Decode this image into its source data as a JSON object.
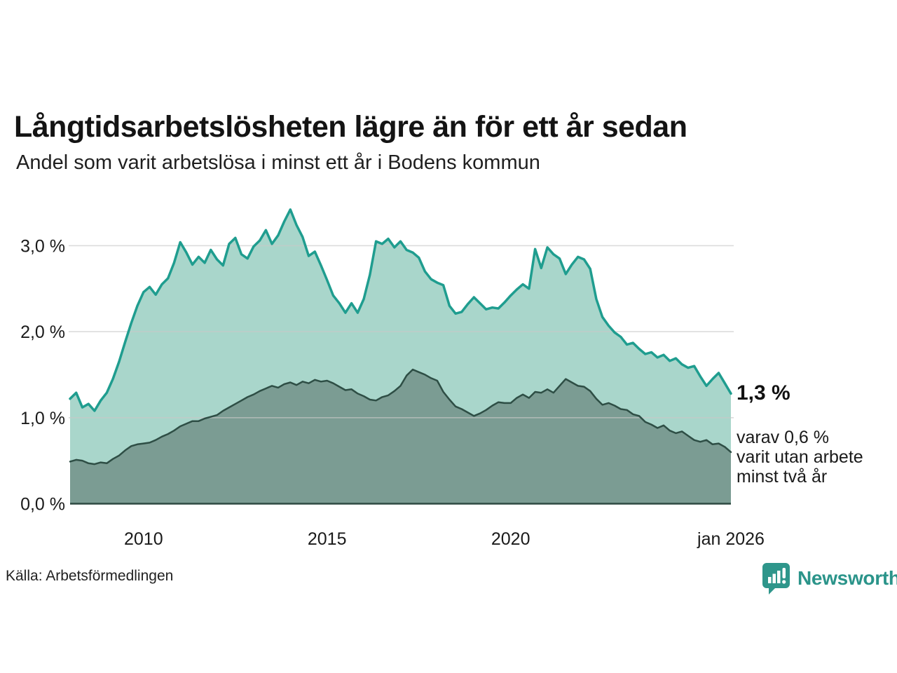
{
  "annotations": {
    "end_value_primary": "1,3 %",
    "end_note": "varav 0,6 %\nvarit utan arbete\nminst två år"
  },
  "footer": {
    "logo_text": "Newsworthy",
    "logo_icon": "newsworthy-bar-chart-bubble-icon"
  },
  "colors": {
    "accent_teal": "#1f9d8f",
    "light_area_fill": "#a9d6cb",
    "dark_area_fill": "#7b9c93",
    "dark_line": "#2e4e45",
    "gridline": "#c8c8c8",
    "axis_line": "#2e4a42",
    "logo_teal": "#2e968b",
    "text_dark": "#1a1a1a"
  },
  "chart_data": {
    "type": "area",
    "title": "Långtidsarbetslösheten lägre än för ett år sedan",
    "subtitle": "Andel som varit arbetslösa i minst ett år i Bodens kommun",
    "source": "Källa: Arbetsförmedlingen",
    "unit": "%",
    "grid": "horizontal",
    "legend_position": "none",
    "x_start": 2008.0,
    "x_step_years": 0.1666667,
    "x_end": 2026.0,
    "xlim": [
      2008.0,
      2026.0
    ],
    "ylim": [
      0,
      3.55
    ],
    "x_ticks": [
      {
        "label": "2010",
        "x": 2010
      },
      {
        "label": "2015",
        "x": 2015
      },
      {
        "label": "2020",
        "x": 2020
      },
      {
        "label": "jan 2026",
        "x": 2026
      }
    ],
    "y_ticks": [
      {
        "label": "0,0 %",
        "value": 0
      },
      {
        "label": "1,0 %",
        "value": 1
      },
      {
        "label": "2,0 %",
        "value": 2
      },
      {
        "label": "3,0 %",
        "value": 3
      }
    ],
    "series": [
      {
        "name": "Andel arbetslösa minst ett år",
        "end_value": 1.3,
        "line_color": "#1f9d8f",
        "fill_color": "#a9d6cb",
        "line_width": 3.5,
        "values": [
          1.22,
          1.29,
          1.12,
          1.16,
          1.08,
          1.2,
          1.29,
          1.45,
          1.65,
          1.88,
          2.1,
          2.3,
          2.46,
          2.52,
          2.43,
          2.55,
          2.62,
          2.8,
          3.04,
          2.92,
          2.78,
          2.87,
          2.8,
          2.95,
          2.84,
          2.77,
          3.02,
          3.09,
          2.9,
          2.85,
          2.99,
          3.06,
          3.18,
          3.02,
          3.12,
          3.28,
          3.42,
          3.24,
          3.1,
          2.88,
          2.93,
          2.77,
          2.6,
          2.42,
          2.33,
          2.22,
          2.33,
          2.22,
          2.38,
          2.66,
          3.05,
          3.02,
          3.08,
          2.98,
          3.05,
          2.95,
          2.92,
          2.86,
          2.7,
          2.61,
          2.57,
          2.54,
          2.3,
          2.21,
          2.23,
          2.32,
          2.4,
          2.33,
          2.26,
          2.28,
          2.27,
          2.34,
          2.42,
          2.49,
          2.55,
          2.5,
          2.96,
          2.74,
          2.98,
          2.9,
          2.85,
          2.67,
          2.78,
          2.87,
          2.84,
          2.73,
          2.38,
          2.17,
          2.07,
          1.99,
          1.94,
          1.85,
          1.87,
          1.8,
          1.74,
          1.76,
          1.7,
          1.73,
          1.66,
          1.69,
          1.62,
          1.58,
          1.6,
          1.48,
          1.37,
          1.45,
          1.52,
          1.4,
          1.28
        ]
      },
      {
        "name": "Andel utan arbete minst två år",
        "end_value": 0.6,
        "line_color": "#2e4e45",
        "fill_color": "#7b9c93",
        "line_width": 2.5,
        "values": [
          0.49,
          0.51,
          0.5,
          0.47,
          0.46,
          0.48,
          0.47,
          0.52,
          0.56,
          0.62,
          0.67,
          0.69,
          0.7,
          0.71,
          0.74,
          0.78,
          0.81,
          0.85,
          0.9,
          0.93,
          0.96,
          0.96,
          0.99,
          1.01,
          1.03,
          1.08,
          1.12,
          1.16,
          1.2,
          1.24,
          1.27,
          1.31,
          1.34,
          1.37,
          1.35,
          1.39,
          1.41,
          1.38,
          1.42,
          1.4,
          1.44,
          1.42,
          1.43,
          1.4,
          1.36,
          1.32,
          1.33,
          1.28,
          1.25,
          1.21,
          1.2,
          1.24,
          1.26,
          1.31,
          1.37,
          1.49,
          1.56,
          1.53,
          1.5,
          1.46,
          1.43,
          1.3,
          1.21,
          1.13,
          1.1,
          1.06,
          1.02,
          1.05,
          1.09,
          1.14,
          1.18,
          1.17,
          1.17,
          1.23,
          1.27,
          1.23,
          1.3,
          1.29,
          1.33,
          1.29,
          1.37,
          1.45,
          1.41,
          1.37,
          1.36,
          1.31,
          1.22,
          1.15,
          1.17,
          1.14,
          1.1,
          1.09,
          1.04,
          1.02,
          0.95,
          0.92,
          0.88,
          0.91,
          0.85,
          0.82,
          0.84,
          0.79,
          0.74,
          0.72,
          0.74,
          0.69,
          0.7,
          0.66,
          0.6
        ]
      }
    ]
  }
}
